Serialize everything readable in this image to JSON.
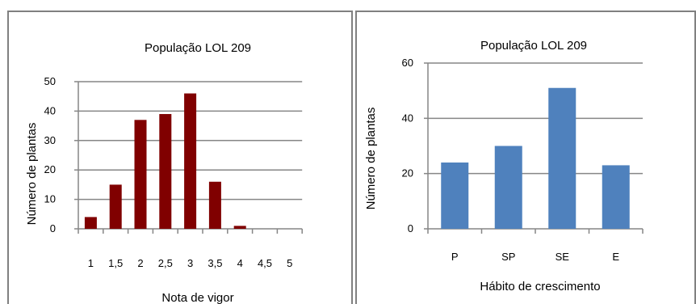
{
  "chart_data": [
    {
      "type": "bar",
      "title": "População LOL 209",
      "xlabel": "Nota de vigor",
      "ylabel": "Número de plantas",
      "categories": [
        "1",
        "1,5",
        "2",
        "2,5",
        "3",
        "3,5",
        "4",
        "4,5",
        "5"
      ],
      "values": [
        4,
        15,
        37,
        39,
        46,
        16,
        1,
        0,
        0
      ],
      "ylim": [
        0,
        50
      ],
      "yticks": [
        "0",
        "10",
        "20",
        "30",
        "40",
        "50"
      ],
      "grid": true,
      "legend": "none",
      "bar_color": "#800000"
    },
    {
      "type": "bar",
      "title": "População LOL 209",
      "xlabel": "Hábito de crescimento",
      "ylabel": "Número de plantas",
      "categories": [
        "P",
        "SP",
        "SE",
        "E"
      ],
      "values": [
        24,
        30,
        51,
        23
      ],
      "ylim": [
        0,
        60
      ],
      "yticks": [
        "0",
        "20",
        "40",
        "60"
      ],
      "grid": true,
      "legend": "none",
      "bar_color": "#4F81BD"
    }
  ]
}
